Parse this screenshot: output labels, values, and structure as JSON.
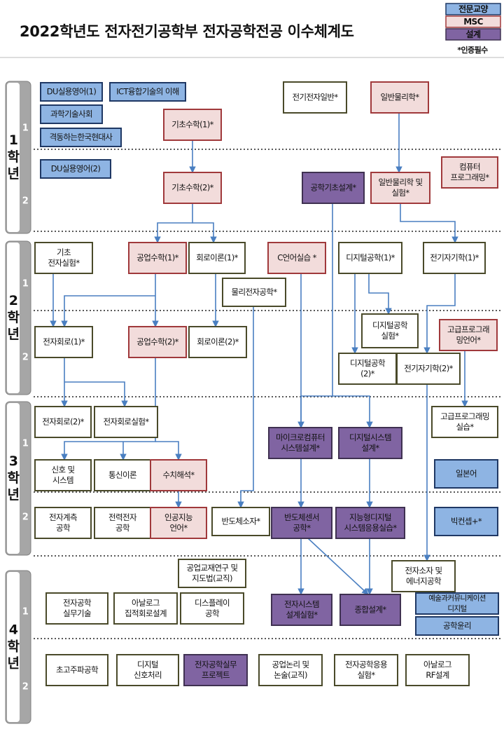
{
  "header": {
    "title": "2022학년도 전자전기공학부 전자공학전공 이수체계도",
    "legend": [
      {
        "label": "전문교양",
        "kind": "general"
      },
      {
        "label": "MSC",
        "kind": "msc"
      },
      {
        "label": "설계",
        "kind": "design"
      }
    ],
    "note": "*인증필수"
  },
  "years": [
    {
      "label": [
        "1",
        "학",
        "년"
      ],
      "semesters": [
        "1",
        "2"
      ]
    },
    {
      "label": [
        "2",
        "학",
        "년"
      ],
      "semesters": [
        "1",
        "2"
      ]
    },
    {
      "label": [
        "3",
        "학",
        "년"
      ],
      "semesters": [
        "1",
        "2"
      ]
    },
    {
      "label": [
        "4",
        "학",
        "년"
      ],
      "semesters": [
        "1",
        "2"
      ]
    }
  ],
  "courses": [
    {
      "label": [
        "DU실용영어(1)"
      ],
      "kind": "general"
    },
    {
      "label": [
        "ICT융합기술의 이해"
      ],
      "kind": "general"
    },
    {
      "label": [
        "과학기술사회"
      ],
      "kind": "general"
    },
    {
      "label": [
        "격동하는한국현대사"
      ],
      "kind": "general"
    },
    {
      "label": [
        "기초수학(1)*"
      ],
      "kind": "msc"
    },
    {
      "label": [
        "전기전자일반*"
      ],
      "kind": "major"
    },
    {
      "label": [
        "일반물리학*"
      ],
      "kind": "msc"
    },
    {
      "label": [
        "DU실용영어(2)"
      ],
      "kind": "general"
    },
    {
      "label": [
        "기초수학(2)*"
      ],
      "kind": "msc"
    },
    {
      "label": [
        "공학기초설계*"
      ],
      "kind": "design"
    },
    {
      "label": [
        "일반물리학 및",
        "실험*"
      ],
      "kind": "msc"
    },
    {
      "label": [
        "컴퓨터",
        "프로그래밍*"
      ],
      "kind": "msc"
    },
    {
      "label": [
        "기초",
        "전자실험*"
      ],
      "kind": "major"
    },
    {
      "label": [
        "공업수학(1)*"
      ],
      "kind": "msc"
    },
    {
      "label": [
        "회로이론(1)*"
      ],
      "kind": "major"
    },
    {
      "label": [
        "C언어실습 *"
      ],
      "kind": "msc"
    },
    {
      "label": [
        "디지털공학(1)*"
      ],
      "kind": "major"
    },
    {
      "label": [
        "전기자기학(1)*"
      ],
      "kind": "major"
    },
    {
      "label": [
        "물리전자공학*"
      ],
      "kind": "major"
    },
    {
      "label": [
        "전자회로(1)*"
      ],
      "kind": "major"
    },
    {
      "label": [
        "공업수학(2)*"
      ],
      "kind": "msc"
    },
    {
      "label": [
        "회로이론(2)*"
      ],
      "kind": "major"
    },
    {
      "label": [
        "디지털공학",
        "실험*"
      ],
      "kind": "major"
    },
    {
      "label": [
        "고급프로그래",
        "밍언어*"
      ],
      "kind": "msc"
    },
    {
      "label": [
        "디지털공학",
        "(2)*"
      ],
      "kind": "major"
    },
    {
      "label": [
        "전기자기학(2)*"
      ],
      "kind": "major"
    },
    {
      "label": [
        "전자회로(2)*"
      ],
      "kind": "major"
    },
    {
      "label": [
        "전자회로실험*"
      ],
      "kind": "major"
    },
    {
      "label": [
        "마이크로컴퓨터",
        "시스템설계*"
      ],
      "kind": "design"
    },
    {
      "label": [
        "디지털시스템",
        "설계*"
      ],
      "kind": "design"
    },
    {
      "label": [
        "고급프로그래밍",
        "실습*"
      ],
      "kind": "major"
    },
    {
      "label": [
        "신호 및",
        "시스템"
      ],
      "kind": "major"
    },
    {
      "label": [
        "통신이론"
      ],
      "kind": "major"
    },
    {
      "label": [
        "수치해석*"
      ],
      "kind": "msc"
    },
    {
      "label": [
        "일본어"
      ],
      "kind": "general"
    },
    {
      "label": [
        "전자계측",
        "공학"
      ],
      "kind": "major"
    },
    {
      "label": [
        "전력전자",
        "공학"
      ],
      "kind": "major"
    },
    {
      "label": [
        "인공지능",
        "언어*"
      ],
      "kind": "msc"
    },
    {
      "label": [
        "반도체소자*"
      ],
      "kind": "major"
    },
    {
      "label": [
        "반도체센서",
        "공학*"
      ],
      "kind": "design"
    },
    {
      "label": [
        "지능형디지털",
        "시스템응용실습*"
      ],
      "kind": "design"
    },
    {
      "label": [
        "빅컨셉+*"
      ],
      "kind": "general"
    },
    {
      "label": [
        "공업교재연구 및",
        "지도법(교직)"
      ],
      "kind": "major"
    },
    {
      "label": [
        "전자소자 및",
        "에너지공학"
      ],
      "kind": "major"
    },
    {
      "label": [
        "전자공학",
        "실무기술"
      ],
      "kind": "major"
    },
    {
      "label": [
        "아날로그",
        "집적회로설계"
      ],
      "kind": "major"
    },
    {
      "label": [
        "디스플레이",
        "공학"
      ],
      "kind": "major"
    },
    {
      "label": [
        "전자시스템",
        "설계실험*"
      ],
      "kind": "design"
    },
    {
      "label": [
        "종합설계*"
      ],
      "kind": "design"
    },
    {
      "label": [
        "예술과커뮤니케이션",
        "디지털"
      ],
      "kind": "general"
    },
    {
      "label": [
        "공학윤리"
      ],
      "kind": "general"
    },
    {
      "label": [
        "초고주파공학"
      ],
      "kind": "major"
    },
    {
      "label": [
        "디지털",
        "신호처리"
      ],
      "kind": "major"
    },
    {
      "label": [
        "전자공학실무",
        "프로젝트"
      ],
      "kind": "design"
    },
    {
      "label": [
        "공업논리 및",
        "논술(교직)"
      ],
      "kind": "major"
    },
    {
      "label": [
        "전자공학응용",
        "실험*"
      ],
      "kind": "major"
    },
    {
      "label": [
        "아날로그",
        "RF설계"
      ],
      "kind": "major"
    }
  ]
}
